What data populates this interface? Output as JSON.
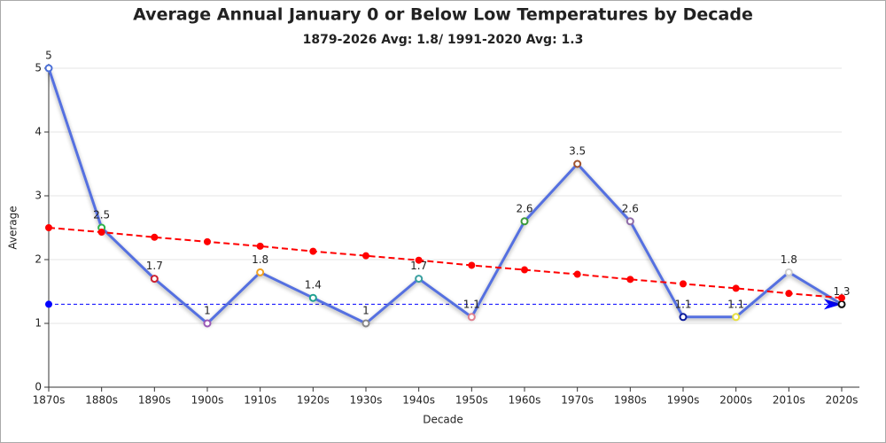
{
  "chart_data": {
    "type": "line",
    "title": "Average Annual January 0 or Below Low Temperatures by Decade",
    "subtitle": "1879-2026 Avg: 1.8/ 1991-2020 Avg: 1.3",
    "x_label": "Decade",
    "y_label": "Average",
    "categories": [
      "1870s",
      "1880s",
      "1890s",
      "1900s",
      "1910s",
      "1920s",
      "1930s",
      "1940s",
      "1950s",
      "1960s",
      "1970s",
      "1980s",
      "1990s",
      "2000s",
      "2010s",
      "2020s"
    ],
    "ylim": [
      0,
      5
    ],
    "yticks": [
      0,
      1,
      2,
      3,
      4,
      5
    ],
    "grid": true,
    "series": [
      {
        "color": "#5470e0",
        "data_labels": true,
        "values": [
          5,
          2.5,
          1.7,
          1,
          1.8,
          1.4,
          1,
          1.7,
          1.1,
          2.6,
          3.5,
          2.6,
          1.1,
          1.1,
          1.8,
          1.3
        ],
        "marker_colors": [
          "#4a6fd8",
          "#2db34a",
          "#cc2233",
          "#9b59b6",
          "#f0a020",
          "#20a090",
          "#888888",
          "#3aa0a0",
          "#e08090",
          "#3a9a3a",
          "#a0522d",
          "#8e6aa8",
          "#0a1a9a",
          "#e8e040",
          "#d0d0d0",
          "#111111"
        ]
      },
      {
        "color": "#ff0000",
        "dashed": true,
        "values": [
          2.5,
          2.43,
          2.35,
          2.28,
          2.21,
          2.13,
          2.06,
          1.99,
          1.91,
          1.84,
          1.77,
          1.69,
          1.62,
          1.55,
          1.47,
          1.4
        ]
      }
    ],
    "reference_line": {
      "value": 1.3,
      "color": "#0000ff"
    }
  }
}
